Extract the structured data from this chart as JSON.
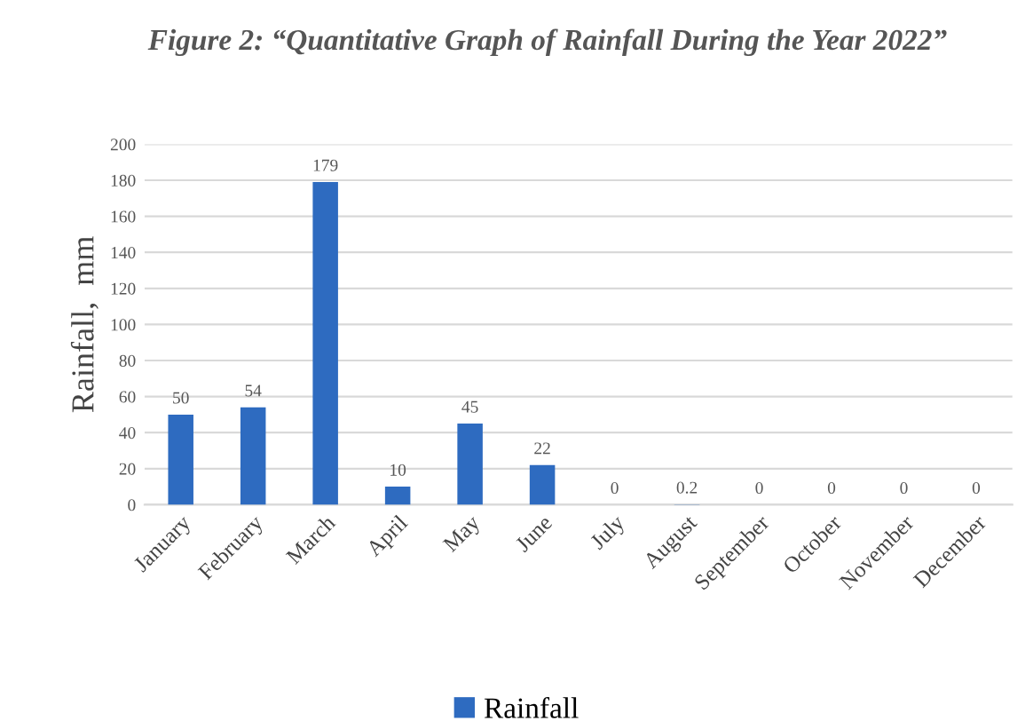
{
  "chart_data": {
    "type": "bar",
    "title": "Figure 2: “Quantitative Graph of Rainfall During the Year 2022”",
    "ylabel": "Rainfall,  mm",
    "categories": [
      "January",
      "February",
      "March",
      "April",
      "May",
      "June",
      "July",
      "August",
      "September",
      "October",
      "November",
      "December"
    ],
    "series": [
      {
        "name": "Rainfall",
        "color": "#2e6bc0",
        "values": [
          50,
          54,
          179,
          10,
          45,
          22,
          0,
          0.2,
          0,
          0,
          0,
          0
        ]
      }
    ],
    "ylim": [
      0,
      200
    ],
    "yticks": [
      0,
      20,
      40,
      60,
      80,
      100,
      120,
      140,
      160,
      180,
      200
    ],
    "grid": "y",
    "legend": "bottom",
    "data_labels": true
  }
}
